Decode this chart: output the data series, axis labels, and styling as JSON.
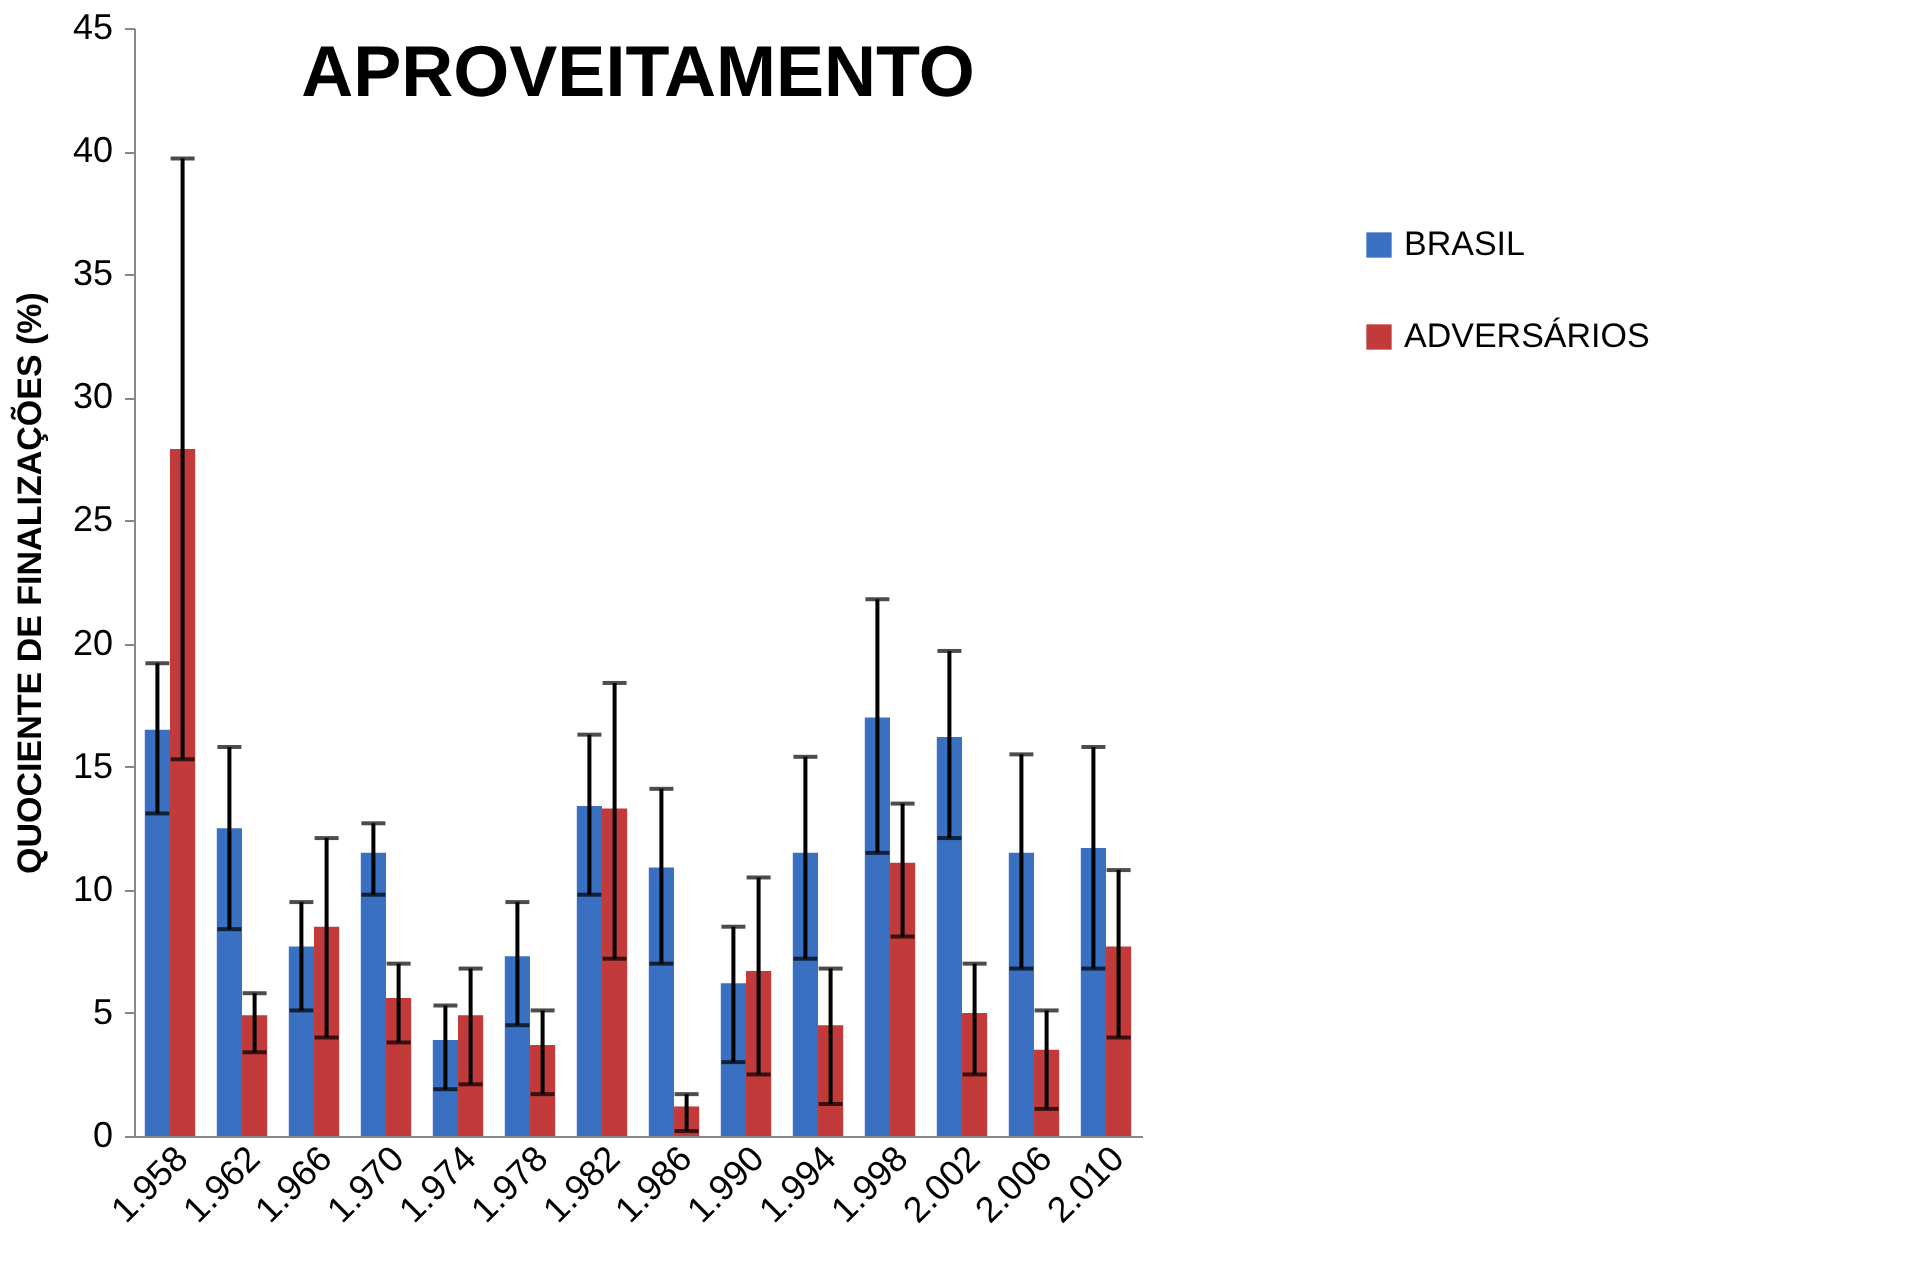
{
  "chart_data": {
    "type": "bar",
    "title": "APROVEITAMENTO",
    "ylabel": "QUOCIENTE DE FINALIZAÇÕES (%)",
    "categories": [
      "1.958",
      "1.962",
      "1.966",
      "1.970",
      "1.974",
      "1.978",
      "1.982",
      "1.986",
      "1.990",
      "1.994",
      "1.998",
      "2.002",
      "2.006",
      "2.010"
    ],
    "series": [
      {
        "name": "BRASIL",
        "color": "#3a70c2",
        "values": [
          16.5,
          12.5,
          7.7,
          11.5,
          3.9,
          7.3,
          13.4,
          10.9,
          6.2,
          11.5,
          17.0,
          16.2,
          11.5,
          11.7
        ],
        "errors": [
          [
            13.1,
            19.2
          ],
          [
            8.4,
            15.8
          ],
          [
            5.1,
            9.5
          ],
          [
            9.8,
            12.7
          ],
          [
            1.9,
            5.3
          ],
          [
            4.5,
            9.5
          ],
          [
            9.8,
            16.3
          ],
          [
            7.0,
            14.1
          ],
          [
            3.0,
            8.5
          ],
          [
            7.2,
            15.4
          ],
          [
            11.5,
            21.8
          ],
          [
            12.1,
            19.7
          ],
          [
            6.8,
            15.5
          ],
          [
            6.8,
            15.8
          ]
        ]
      },
      {
        "name": "ADVERSÁRIOS",
        "color": "#c23a3a",
        "values": [
          27.9,
          4.9,
          8.5,
          5.6,
          4.9,
          3.7,
          13.3,
          1.2,
          6.7,
          4.5,
          11.1,
          5.0,
          3.5,
          7.7
        ],
        "errors": [
          [
            15.3,
            39.7
          ],
          [
            3.4,
            5.8
          ],
          [
            4.0,
            12.1
          ],
          [
            3.8,
            7.0
          ],
          [
            2.1,
            6.8
          ],
          [
            1.7,
            5.1
          ],
          [
            7.2,
            18.4
          ],
          [
            0.2,
            1.7
          ],
          [
            2.5,
            10.5
          ],
          [
            1.3,
            6.8
          ],
          [
            8.1,
            13.5
          ],
          [
            2.5,
            7.0
          ],
          [
            1.1,
            5.1
          ],
          [
            4.0,
            10.8
          ]
        ]
      }
    ],
    "ylim": [
      0,
      45
    ],
    "yticks": [
      0,
      5,
      10,
      15,
      20,
      25,
      30,
      35,
      40,
      45
    ],
    "grid": false,
    "legend": "top right"
  }
}
